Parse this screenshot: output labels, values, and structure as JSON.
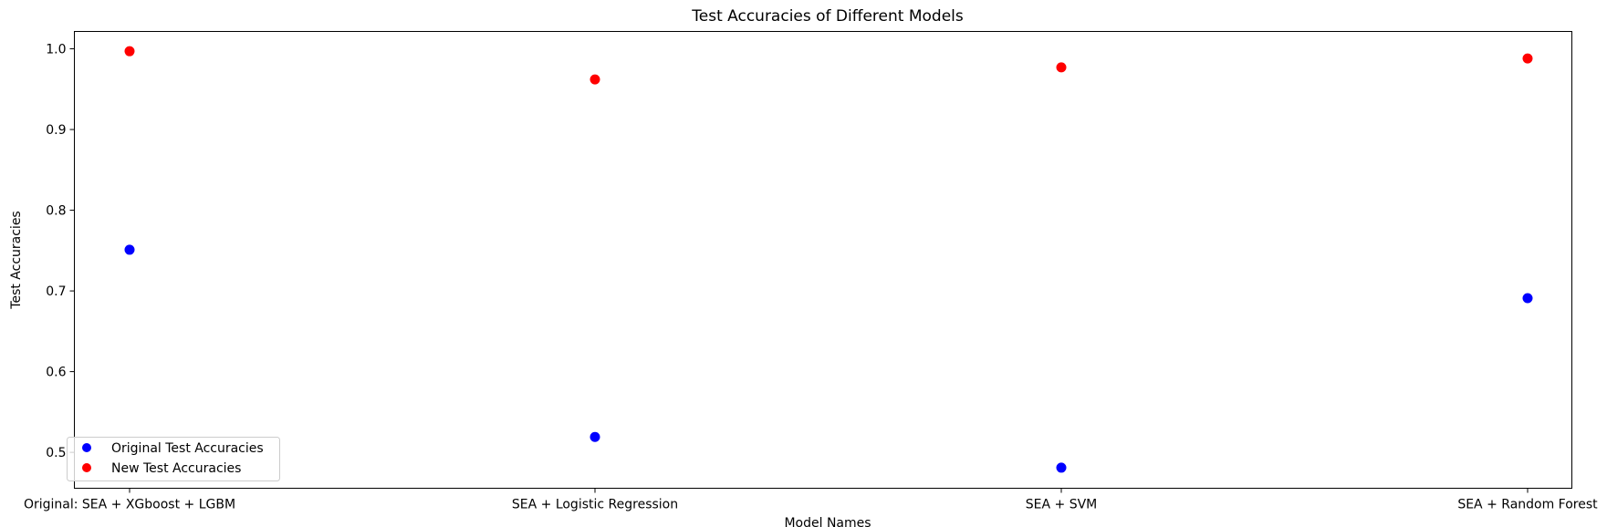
{
  "chart_data": {
    "type": "scatter",
    "title": "Test Accuracies of Different Models",
    "xlabel": "Model Names",
    "ylabel": "Test Accuracies",
    "categories": [
      "Original: SEA + XGboost + LGBM",
      "SEA + Logistic Regression",
      "SEA + SVM",
      "SEA + Random Forest"
    ],
    "series": [
      {
        "name": "Original Test Accuracies",
        "color": "#0000ff",
        "values": [
          0.751,
          0.519,
          0.481,
          0.691
        ]
      },
      {
        "name": "New Test Accuracies",
        "color": "#ff0000",
        "values": [
          0.997,
          0.962,
          0.977,
          0.988
        ]
      }
    ],
    "ylim": [
      0.4555,
      1.0215
    ],
    "yticks": [
      0.5,
      0.6,
      0.7,
      0.8,
      0.9,
      1.0
    ],
    "ytick_labels": [
      "0.5",
      "0.6",
      "0.7",
      "0.8",
      "0.9",
      "1.0"
    ],
    "grid": false,
    "legend_position": "lower-left"
  }
}
